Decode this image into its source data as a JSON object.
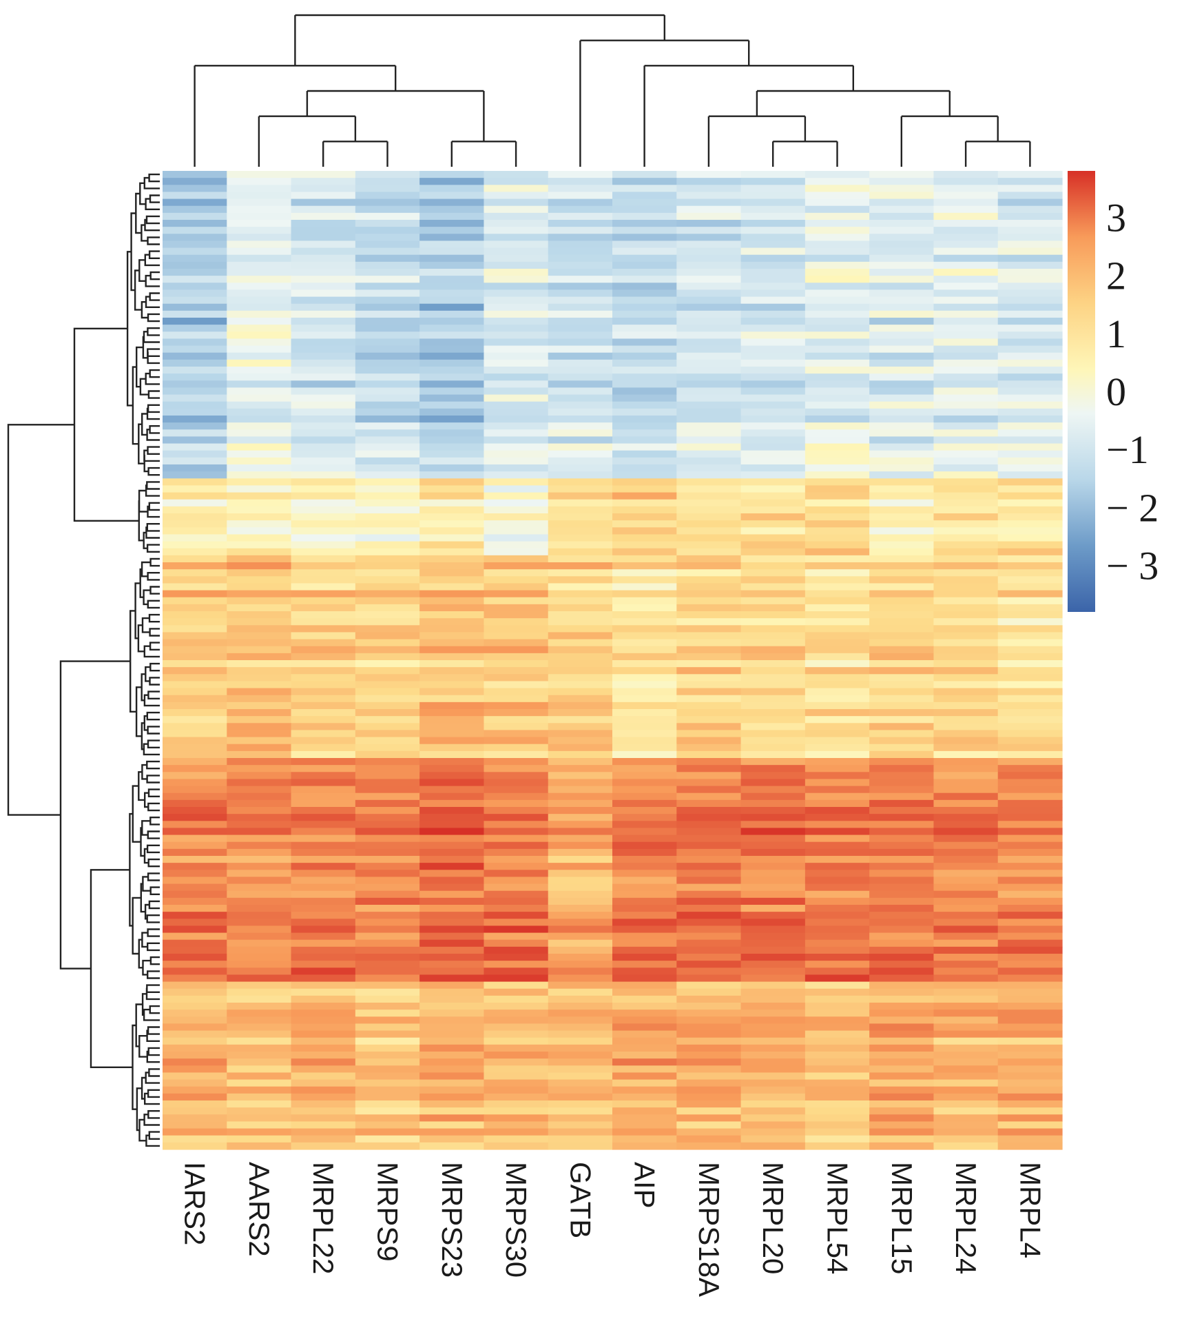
{
  "chart_data": {
    "type": "heatmap",
    "title": "",
    "xlabel": "",
    "ylabel": "",
    "columns": [
      "IARS2",
      "AARS2",
      "MRPL22",
      "MRPS9",
      "MRPS23",
      "MRPS30",
      "GATB",
      "AIP",
      "MRPS18A",
      "MRPL20",
      "MRPL54",
      "MRPL15",
      "MRPL24",
      "MRPL4"
    ],
    "row_count": 140,
    "colorbar": {
      "ticks": [
        "3",
        "2",
        "1",
        "0",
        "−1",
        "− 2",
        "− 3"
      ],
      "tick_values": [
        3,
        2,
        1,
        0,
        -1,
        -2,
        -3
      ],
      "range": [
        -3.8,
        3.8
      ],
      "low_color": "#3b64a9",
      "mid_color": "#fefec0",
      "high_color": "#d73027"
    },
    "row_blocks": [
      {
        "rows": 44,
        "column_means": [
          -1.6,
          -0.5,
          -0.9,
          -1.2,
          -1.6,
          -0.8,
          -1.0,
          -1.3,
          -0.9,
          -0.9,
          -0.6,
          -0.8,
          -0.6,
          -0.8
        ]
      },
      {
        "rows": 11,
        "column_means": [
          0.4,
          0.2,
          0.2,
          0.0,
          0.6,
          -0.2,
          0.9,
          1.3,
          1.0,
          0.9,
          1.1,
          0.3,
          0.9,
          0.8
        ]
      },
      {
        "rows": 29,
        "column_means": [
          1.4,
          1.6,
          1.3,
          1.3,
          1.6,
          1.5,
          1.3,
          0.9,
          1.3,
          1.1,
          1.0,
          1.2,
          1.1,
          0.9
        ]
      },
      {
        "rows": 32,
        "column_means": [
          2.7,
          2.5,
          2.7,
          2.7,
          3.0,
          2.8,
          2.0,
          2.8,
          2.8,
          2.8,
          2.8,
          2.8,
          2.7,
          2.7
        ]
      },
      {
        "rows": 24,
        "column_means": [
          1.8,
          1.6,
          1.8,
          1.5,
          1.9,
          1.8,
          1.7,
          2.0,
          1.9,
          1.8,
          1.6,
          2.1,
          1.9,
          2.0
        ]
      }
    ],
    "column_dendrogram": "((IARS2,((AARS2,(MRPL22,MRPS9)),(MRPS23,MRPS30))),(GATB,(AIP,((MRPS18A,(MRPL20,MRPL54)),(MRPL15,(MRPL24,MRPL4))))))"
  }
}
